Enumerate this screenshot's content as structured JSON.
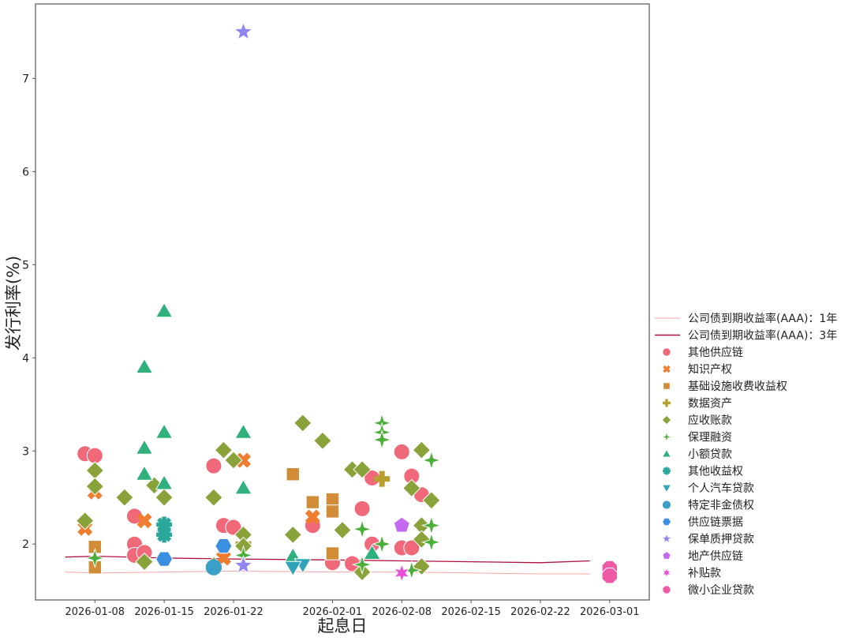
{
  "chart_data": {
    "type": "scatter",
    "title": "",
    "xlabel": "起息日",
    "ylabel": "发行利率(%)",
    "xlim": [
      "2026-01-02",
      "2026-03-05"
    ],
    "ylim": [
      1.4,
      7.8
    ],
    "x_ticks": [
      "2026-01-08",
      "2026-01-15",
      "2026-01-22",
      "2026-02-01",
      "2026-02-08",
      "2026-02-15",
      "2026-02-22",
      "2026-03-01"
    ],
    "y_ticks": [
      2,
      3,
      4,
      5,
      6,
      7
    ],
    "grid": false,
    "legend_position": "right",
    "lines": [
      {
        "name": "公司债到期收益率(AAA)：1年",
        "color": "#f4a6a6",
        "points": [
          [
            "2026-01-05",
            1.7
          ],
          [
            "2026-01-08",
            1.69
          ],
          [
            "2026-01-15",
            1.7
          ],
          [
            "2026-01-22",
            1.71
          ],
          [
            "2026-02-01",
            1.7
          ],
          [
            "2026-02-08",
            1.7
          ],
          [
            "2026-02-15",
            1.69
          ],
          [
            "2026-02-22",
            1.68
          ],
          [
            "2026-02-27",
            1.68
          ]
        ]
      },
      {
        "name": "公司债到期收益率(AAA)：3年",
        "color": "#b0103c",
        "points": [
          [
            "2026-01-05",
            1.86
          ],
          [
            "2026-01-08",
            1.87
          ],
          [
            "2026-01-15",
            1.85
          ],
          [
            "2026-01-22",
            1.84
          ],
          [
            "2026-02-01",
            1.83
          ],
          [
            "2026-02-08",
            1.82
          ],
          [
            "2026-02-15",
            1.81
          ],
          [
            "2026-02-22",
            1.8
          ],
          [
            "2026-02-27",
            1.82
          ]
        ]
      }
    ],
    "series": [
      {
        "name": "其他供应链",
        "color": "#f0697a",
        "marker": "circle",
        "points": [
          [
            "2026-01-07",
            2.97
          ],
          [
            "2026-01-08",
            2.95
          ],
          [
            "2026-01-12",
            2.3
          ],
          [
            "2026-01-12",
            2.0
          ],
          [
            "2026-01-12",
            1.88
          ],
          [
            "2026-01-13",
            1.91
          ],
          [
            "2026-01-20",
            2.84
          ],
          [
            "2026-01-21",
            2.2
          ],
          [
            "2026-01-22",
            2.18
          ],
          [
            "2026-01-30",
            2.2
          ],
          [
            "2026-02-01",
            1.8
          ],
          [
            "2026-02-03",
            1.79
          ],
          [
            "2026-02-04",
            2.38
          ],
          [
            "2026-02-05",
            2.71
          ],
          [
            "2026-02-05",
            2.0
          ],
          [
            "2026-02-08",
            2.99
          ],
          [
            "2026-02-09",
            2.73
          ],
          [
            "2026-02-10",
            2.53
          ],
          [
            "2026-02-08",
            1.96
          ],
          [
            "2026-02-09",
            1.96
          ]
        ]
      },
      {
        "name": "知识产权",
        "color": "#ef7d2f",
        "marker": "x",
        "points": [
          [
            "2026-01-07",
            2.17
          ],
          [
            "2026-01-08",
            2.56
          ],
          [
            "2026-01-13",
            2.25
          ],
          [
            "2026-01-21",
            1.85
          ],
          [
            "2026-01-23",
            2.9
          ],
          [
            "2026-01-30",
            2.29
          ]
        ]
      },
      {
        "name": "基础设施收费收益权",
        "color": "#d08c37",
        "marker": "square",
        "points": [
          [
            "2026-01-08",
            1.97
          ],
          [
            "2026-01-08",
            1.75
          ],
          [
            "2026-01-28",
            2.75
          ],
          [
            "2026-01-30",
            2.45
          ],
          [
            "2026-02-01",
            2.48
          ],
          [
            "2026-02-01",
            2.35
          ],
          [
            "2026-02-01",
            1.9
          ]
        ]
      },
      {
        "name": "数据资产",
        "color": "#b8a030",
        "marker": "plus",
        "points": [
          [
            "2026-02-06",
            2.7
          ],
          [
            "2026-01-23",
            2.0
          ]
        ]
      },
      {
        "name": "应收账款",
        "color": "#8aa23a",
        "marker": "diamond",
        "points": [
          [
            "2026-01-07",
            2.25
          ],
          [
            "2026-01-08",
            2.79
          ],
          [
            "2026-01-08",
            2.62
          ],
          [
            "2026-01-11",
            2.5
          ],
          [
            "2026-01-14",
            2.63
          ],
          [
            "2026-01-15",
            2.5
          ],
          [
            "2026-01-13",
            1.81
          ],
          [
            "2026-01-20",
            2.5
          ],
          [
            "2026-01-21",
            3.01
          ],
          [
            "2026-01-22",
            2.9
          ],
          [
            "2026-01-23",
            2.1
          ],
          [
            "2026-01-23",
            1.98
          ],
          [
            "2026-01-20",
            1.77
          ],
          [
            "2026-01-28",
            2.1
          ],
          [
            "2026-01-29",
            3.3
          ],
          [
            "2026-01-31",
            3.11
          ],
          [
            "2026-02-02",
            2.15
          ],
          [
            "2026-02-03",
            2.8
          ],
          [
            "2026-02-04",
            2.8
          ],
          [
            "2026-02-04",
            1.7
          ],
          [
            "2026-02-09",
            2.6
          ],
          [
            "2026-02-10",
            3.01
          ],
          [
            "2026-02-10",
            2.2
          ],
          [
            "2026-02-10",
            2.05
          ],
          [
            "2026-02-11",
            2.47
          ],
          [
            "2026-02-10",
            1.76
          ]
        ]
      },
      {
        "name": "保理融资",
        "color": "#4caf3a",
        "marker": "star4",
        "points": [
          [
            "2026-01-08",
            1.85
          ],
          [
            "2026-01-23",
            1.88
          ],
          [
            "2026-02-04",
            1.78
          ],
          [
            "2026-02-04",
            2.16
          ],
          [
            "2026-02-06",
            3.3
          ],
          [
            "2026-02-06",
            3.2
          ],
          [
            "2026-02-06",
            3.12
          ],
          [
            "2026-02-06",
            2.0
          ],
          [
            "2026-02-09",
            1.72
          ],
          [
            "2026-02-11",
            2.9
          ],
          [
            "2026-02-11",
            2.2
          ],
          [
            "2026-02-11",
            2.02
          ]
        ]
      },
      {
        "name": "小额贷款",
        "color": "#2fb07c",
        "marker": "triangle-up",
        "points": [
          [
            "2026-01-13",
            3.9
          ],
          [
            "2026-01-15",
            4.5
          ],
          [
            "2026-01-15",
            3.2
          ],
          [
            "2026-01-13",
            3.03
          ],
          [
            "2026-01-13",
            2.75
          ],
          [
            "2026-01-15",
            2.65
          ],
          [
            "2026-01-23",
            3.2
          ],
          [
            "2026-01-23",
            2.6
          ],
          [
            "2026-01-28",
            1.87
          ],
          [
            "2026-02-05",
            1.9
          ]
        ]
      },
      {
        "name": "其他收益权",
        "color": "#2aa79b",
        "marker": "tri-x",
        "points": [
          [
            "2026-01-15",
            2.21
          ],
          [
            "2026-01-15",
            2.1
          ]
        ]
      },
      {
        "name": "个人汽车贷款",
        "color": "#2fa4b8",
        "marker": "triangle-down",
        "points": [
          [
            "2026-01-29",
            1.78
          ],
          [
            "2026-01-28",
            1.75
          ]
        ]
      },
      {
        "name": "特定非金债权",
        "color": "#3aa0c8",
        "marker": "asterisk",
        "points": [
          [
            "2026-01-20",
            1.75
          ]
        ]
      },
      {
        "name": "供应链票据",
        "color": "#3b8fe0",
        "marker": "hexagon",
        "points": [
          [
            "2026-01-15",
            1.84
          ],
          [
            "2026-01-21",
            1.98
          ]
        ]
      },
      {
        "name": "保单质押贷款",
        "color": "#8f87f0",
        "marker": "star5",
        "points": [
          [
            "2026-01-23",
            7.5
          ],
          [
            "2026-01-23",
            1.77
          ]
        ]
      },
      {
        "name": "地产供应链",
        "color": "#c56af0",
        "marker": "pentagon",
        "points": [
          [
            "2026-02-08",
            2.2
          ]
        ]
      },
      {
        "name": "补贴款",
        "color": "#e84fd8",
        "marker": "star6",
        "points": [
          [
            "2026-02-08",
            1.69
          ]
        ]
      },
      {
        "name": "微小企业贷款",
        "color": "#ef5aa6",
        "marker": "octagon",
        "points": [
          [
            "2026-03-01",
            1.74
          ],
          [
            "2026-03-01",
            1.66
          ]
        ]
      }
    ]
  }
}
